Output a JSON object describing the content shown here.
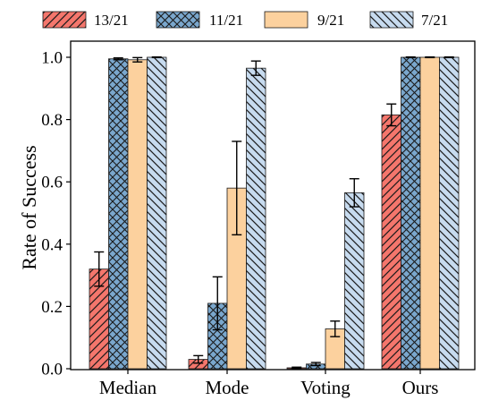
{
  "chart_data": {
    "type": "bar",
    "title": "",
    "xlabel": "",
    "ylabel": "Rate of Success",
    "ylim": [
      0,
      1.0
    ],
    "yticks": [
      "0.0",
      "0.2",
      "0.4",
      "0.6",
      "0.8",
      "1.0"
    ],
    "categories": [
      "Median",
      "Mode",
      "Voting",
      "Ours"
    ],
    "legend_position": "top",
    "series": [
      {
        "name": "13/21",
        "color": "#f4766c",
        "hatch": "forward-diagonal",
        "values": [
          0.32,
          0.03,
          0.003,
          0.815
        ],
        "errors": [
          0.055,
          0.012,
          0.002,
          0.035
        ]
      },
      {
        "name": "11/21",
        "color": "#7aa7cd",
        "hatch": "crosshatch",
        "values": [
          0.995,
          0.21,
          0.015,
          1.0
        ],
        "errors": [
          0.003,
          0.085,
          0.005,
          0.001
        ]
      },
      {
        "name": "9/21",
        "color": "#fcd19e",
        "hatch": "none",
        "values": [
          0.992,
          0.58,
          0.128,
          1.0
        ],
        "errors": [
          0.007,
          0.15,
          0.025,
          0.001
        ]
      },
      {
        "name": "7/21",
        "color": "#c7dbef",
        "hatch": "back-diagonal",
        "values": [
          1.0,
          0.965,
          0.565,
          1.0
        ],
        "errors": [
          0.001,
          0.023,
          0.045,
          0.001
        ]
      }
    ]
  }
}
